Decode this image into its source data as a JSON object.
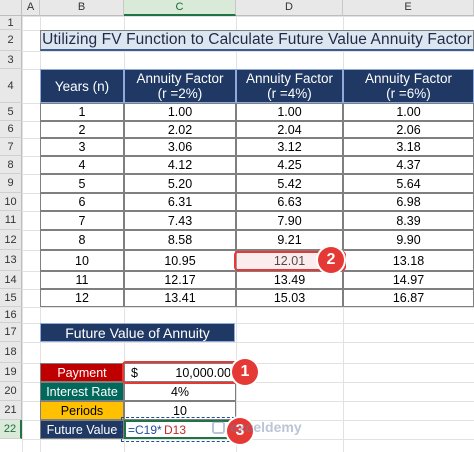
{
  "sheet": {
    "columns": [
      "A",
      "B",
      "C",
      "D",
      "E"
    ],
    "selected_column": "C",
    "rows": [
      "1",
      "2",
      "3",
      "4",
      "5",
      "6",
      "7",
      "8",
      "9",
      "10",
      "11",
      "12",
      "13",
      "14",
      "15",
      "16",
      "17",
      "18",
      "19",
      "20",
      "21",
      "22"
    ],
    "selected_row": "22"
  },
  "title": "Utilizing FV Function to Calculate Future Value Annuity Factor",
  "table": {
    "headers": [
      {
        "line1": "Years (n)",
        "line2": ""
      },
      {
        "line1": "Annuity Factor",
        "line2": "(r =2%)"
      },
      {
        "line1": "Annuity Factor",
        "line2": "(r =4%)"
      },
      {
        "line1": "Annuity Factor",
        "line2": "(r =6%)"
      }
    ],
    "rows": [
      [
        "1",
        "1.00",
        "1.00",
        "1.00"
      ],
      [
        "2",
        "2.02",
        "2.04",
        "2.06"
      ],
      [
        "3",
        "3.06",
        "3.12",
        "3.18"
      ],
      [
        "4",
        "4.12",
        "4.25",
        "4.37"
      ],
      [
        "5",
        "5.20",
        "5.42",
        "5.64"
      ],
      [
        "6",
        "6.31",
        "6.63",
        "6.98"
      ],
      [
        "7",
        "7.43",
        "7.90",
        "8.39"
      ],
      [
        "8",
        "8.58",
        "9.21",
        "9.90"
      ],
      [
        "10",
        "10.95",
        "12.01",
        "13.18"
      ],
      [
        "11",
        "12.17",
        "13.49",
        "14.97"
      ],
      [
        "12",
        "13.41",
        "15.03",
        "16.87"
      ]
    ]
  },
  "annuity": {
    "section_title": "Future Value of Annuity",
    "payment_label": "Payment",
    "payment_currency": "$",
    "payment_value": "10,000.00",
    "rate_label": "Interest Rate",
    "rate_value": "4%",
    "periods_label": "Periods",
    "periods_value": "10",
    "fv_label": "Future Value",
    "formula_part1": "=C19*",
    "formula_part2": "D13"
  },
  "callouts": [
    "1",
    "2",
    "3"
  ],
  "watermark": "exceldemy",
  "colors": {
    "header_navy": "#1f3864",
    "payment_red": "#c00000",
    "rate_teal": "#00695c",
    "periods_yellow": "#ffc000",
    "callout_red": "#e53935"
  }
}
